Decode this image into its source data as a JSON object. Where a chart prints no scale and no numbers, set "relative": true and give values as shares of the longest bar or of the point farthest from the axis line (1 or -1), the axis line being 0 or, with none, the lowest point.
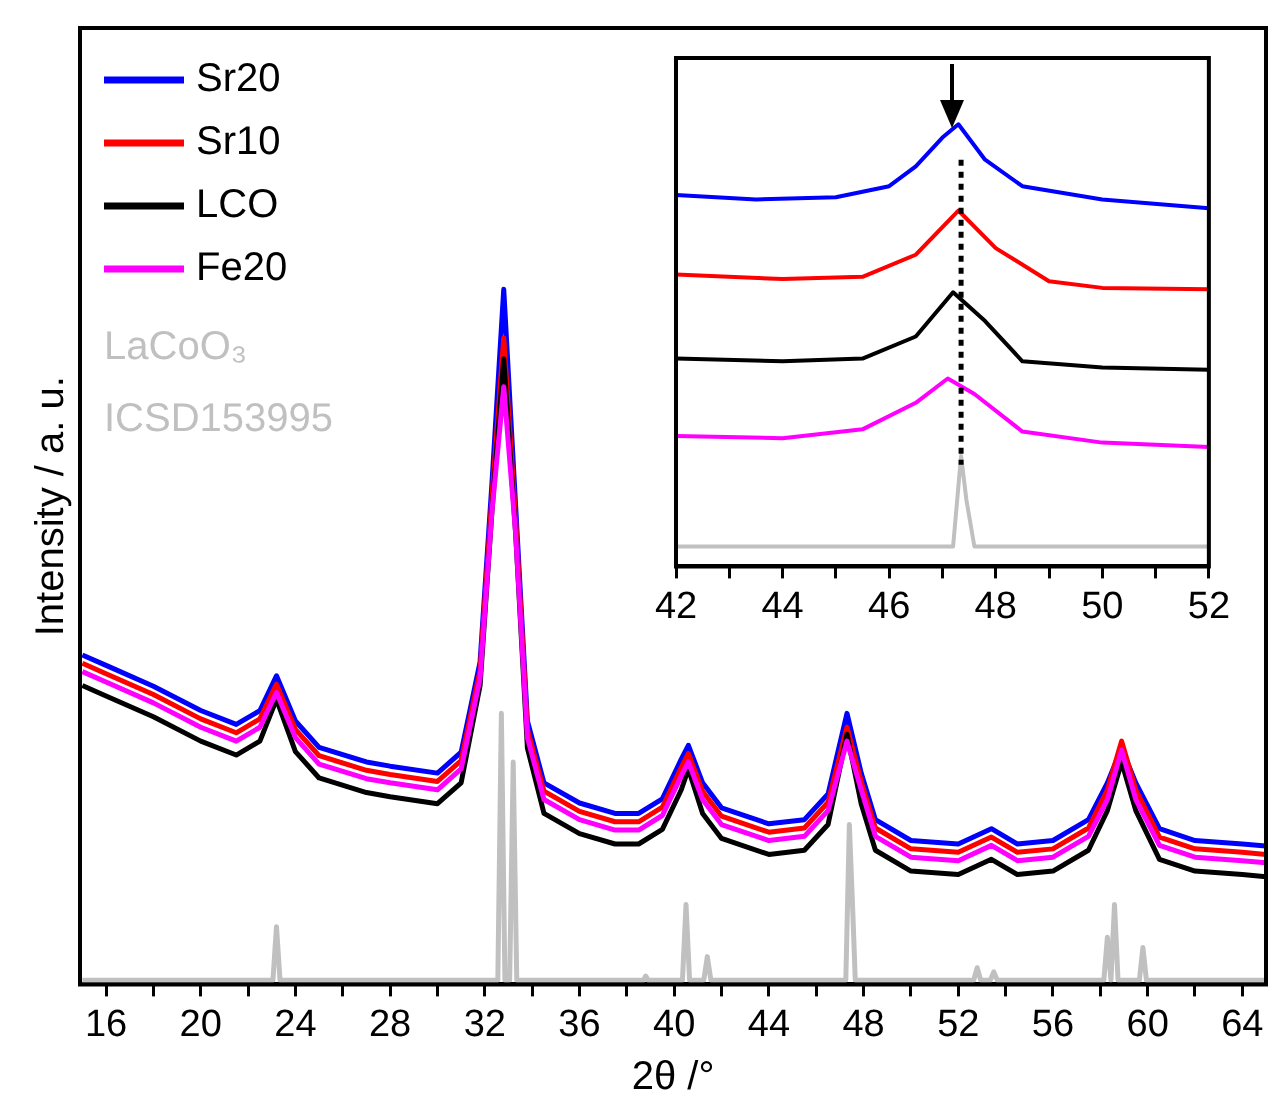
{
  "chart_data": [
    {
      "type": "line",
      "xlabel": "2θ /°",
      "ylabel": "Intensity / a. u.",
      "relative": true,
      "legend": "top left",
      "tick_labels": "x",
      "xlim": [
        14.9,
        65
      ],
      "xticks": [
        16,
        {
          "value": 18,
          "label": null
        },
        20,
        {
          "value": 22,
          "label": null
        },
        24,
        {
          "value": 26,
          "label": null
        },
        28,
        {
          "value": 30,
          "label": null
        },
        32,
        {
          "value": 34,
          "label": null
        },
        36,
        {
          "value": 38,
          "label": null
        },
        40,
        {
          "value": 42,
          "label": null
        },
        44,
        {
          "value": 46,
          "label": null
        },
        48,
        {
          "value": 50,
          "label": null
        },
        52,
        {
          "value": 54,
          "label": null
        },
        56,
        {
          "value": 58,
          "label": null
        },
        60,
        {
          "value": 62,
          "label": null
        },
        64
      ],
      "series": [
        {
          "name": "Sr20",
          "color": "#0000ff",
          "x": [
            15,
            16,
            18,
            20,
            21.5,
            22.5,
            23.2,
            24,
            25,
            27,
            28,
            30,
            31,
            31.8,
            32.3,
            32.8,
            33.3,
            33.8,
            34.5,
            36,
            37.5,
            38.5,
            39.5,
            40.3,
            40.6,
            41.2,
            42,
            44,
            45.5,
            46.5,
            47.3,
            47.9,
            48.5,
            50,
            52,
            53.4,
            54.5,
            56,
            57.5,
            58.3,
            58.9,
            59.5,
            60.5,
            62,
            64,
            65
          ],
          "values": [
            0.474,
            0.459,
            0.429,
            0.394,
            0.374,
            0.394,
            0.444,
            0.379,
            0.341,
            0.32,
            0.314,
            0.304,
            0.334,
            0.464,
            0.72,
            1.0,
            0.69,
            0.379,
            0.29,
            0.261,
            0.246,
            0.246,
            0.267,
            0.324,
            0.344,
            0.29,
            0.254,
            0.231,
            0.237,
            0.274,
            0.39,
            0.304,
            0.237,
            0.207,
            0.202,
            0.224,
            0.202,
            0.207,
            0.237,
            0.29,
            0.34,
            0.29,
            0.224,
            0.207,
            0.202,
            0.199
          ]
        },
        {
          "name": "Sr10",
          "color": "#ff0000",
          "x": [
            15,
            16,
            18,
            20,
            21.5,
            22.5,
            23.2,
            24,
            25,
            27,
            28,
            30,
            31,
            31.8,
            32.3,
            32.8,
            33.3,
            33.8,
            34.5,
            36,
            37.5,
            38.5,
            39.5,
            40.3,
            40.6,
            41.2,
            42,
            44,
            45.5,
            46.5,
            47.3,
            47.9,
            48.5,
            50,
            52,
            53.4,
            54.5,
            56,
            57.5,
            58.3,
            58.9,
            59.5,
            60.5,
            62,
            64,
            65
          ],
          "values": [
            0.462,
            0.447,
            0.417,
            0.382,
            0.362,
            0.382,
            0.432,
            0.367,
            0.329,
            0.308,
            0.302,
            0.292,
            0.322,
            0.452,
            0.7,
            0.93,
            0.67,
            0.367,
            0.278,
            0.249,
            0.234,
            0.234,
            0.255,
            0.312,
            0.332,
            0.278,
            0.242,
            0.219,
            0.225,
            0.262,
            0.37,
            0.292,
            0.225,
            0.195,
            0.19,
            0.212,
            0.19,
            0.195,
            0.225,
            0.28,
            0.35,
            0.28,
            0.212,
            0.195,
            0.19,
            0.187
          ]
        },
        {
          "name": "LCO",
          "color": "#000000",
          "x": [
            15,
            16,
            18,
            20,
            21.5,
            22.5,
            23.2,
            24,
            25,
            27,
            28,
            30,
            31,
            31.8,
            32.3,
            32.8,
            33.3,
            33.8,
            34.5,
            36,
            37.5,
            38.5,
            39.5,
            40.3,
            40.6,
            41.2,
            42,
            44,
            45.5,
            46.5,
            47.3,
            47.9,
            48.5,
            50,
            52,
            53.4,
            54.5,
            56,
            57.5,
            58.3,
            58.9,
            59.5,
            60.5,
            62,
            64,
            65
          ],
          "values": [
            0.43,
            0.415,
            0.385,
            0.35,
            0.33,
            0.35,
            0.41,
            0.335,
            0.297,
            0.276,
            0.27,
            0.26,
            0.29,
            0.43,
            0.68,
            0.9,
            0.65,
            0.34,
            0.246,
            0.217,
            0.202,
            0.202,
            0.223,
            0.28,
            0.31,
            0.246,
            0.21,
            0.187,
            0.193,
            0.23,
            0.36,
            0.26,
            0.193,
            0.163,
            0.158,
            0.18,
            0.158,
            0.163,
            0.193,
            0.25,
            0.32,
            0.25,
            0.18,
            0.163,
            0.158,
            0.155
          ]
        },
        {
          "name": "Fe20",
          "color": "#ff00ff",
          "x": [
            15,
            16,
            18,
            20,
            21.5,
            22.5,
            23.2,
            24,
            25,
            27,
            28,
            30,
            31,
            31.8,
            32.3,
            32.8,
            33.3,
            33.8,
            34.5,
            36,
            37.5,
            38.5,
            39.5,
            40.3,
            40.6,
            41.2,
            42,
            44,
            45.5,
            46.5,
            47.3,
            47.9,
            48.5,
            50,
            52,
            53.4,
            54.5,
            56,
            57.5,
            58.3,
            58.9,
            59.5,
            60.5,
            62,
            64,
            65
          ],
          "values": [
            0.45,
            0.435,
            0.405,
            0.37,
            0.35,
            0.37,
            0.42,
            0.355,
            0.317,
            0.296,
            0.29,
            0.28,
            0.31,
            0.44,
            0.68,
            0.86,
            0.65,
            0.355,
            0.266,
            0.237,
            0.222,
            0.222,
            0.243,
            0.3,
            0.32,
            0.266,
            0.23,
            0.207,
            0.213,
            0.25,
            0.35,
            0.28,
            0.213,
            0.183,
            0.178,
            0.2,
            0.178,
            0.183,
            0.213,
            0.266,
            0.337,
            0.266,
            0.2,
            0.183,
            0.178,
            0.175
          ]
        },
        {
          "name": "LaCoO₃ ICSD153995",
          "color": "#c0c0c0",
          "x": [
            15,
            23.05,
            23.2,
            23.35,
            32.55,
            32.7,
            32.85,
            33.05,
            33.2,
            33.35,
            38.7,
            38.8,
            38.9,
            40.35,
            40.5,
            40.65,
            41.25,
            41.4,
            41.55,
            47.25,
            47.4,
            47.55,
            47.65,
            52.65,
            52.8,
            52.95,
            53.35,
            53.5,
            53.65,
            58.15,
            58.3,
            58.45,
            58.6,
            58.75,
            59.65,
            59.8,
            59.95,
            65
          ],
          "values": [
            0.006,
            0.006,
            0.083,
            0.006,
            0.006,
            0.39,
            0.006,
            0.006,
            0.32,
            0.006,
            0.006,
            0.012,
            0.006,
            0.006,
            0.115,
            0.006,
            0.006,
            0.04,
            0.006,
            0.006,
            0.23,
            0.1,
            0.006,
            0.006,
            0.024,
            0.006,
            0.006,
            0.018,
            0.006,
            0.006,
            0.068,
            0.006,
            0.115,
            0.006,
            0.006,
            0.053,
            0.006,
            0.006
          ]
        }
      ]
    },
    {
      "type": "line",
      "relative": true,
      "tick_labels": "x",
      "xlim": [
        42,
        52
      ],
      "xticks": [
        42,
        {
          "value": 43,
          "label": null
        },
        44,
        {
          "value": 45,
          "label": null
        },
        46,
        {
          "value": 47,
          "label": null
        },
        48,
        {
          "value": 49,
          "label": null
        },
        50,
        {
          "value": 51,
          "label": null
        },
        52
      ],
      "ref_lines": [
        {
          "axis": "x",
          "value": 47.35,
          "color": "#000000",
          "line_style": "dotted"
        }
      ],
      "series": [
        {
          "color": "#0000ff",
          "x": [
            42,
            43.5,
            45,
            46,
            46.5,
            47,
            47.3,
            47.8,
            48.5,
            50,
            52
          ],
          "values": [
            0.84,
            0.83,
            0.835,
            0.86,
            0.905,
            0.97,
            1.0,
            0.92,
            0.86,
            0.83,
            0.81
          ]
        },
        {
          "color": "#ff0000",
          "x": [
            42,
            44,
            45.5,
            46.5,
            47.3,
            48,
            49,
            50,
            52
          ],
          "values": [
            0.66,
            0.65,
            0.655,
            0.705,
            0.805,
            0.72,
            0.645,
            0.63,
            0.627
          ]
        },
        {
          "color": "#000000",
          "x": [
            42,
            44,
            45.5,
            46.5,
            47.2,
            47.8,
            48.5,
            50,
            52
          ],
          "values": [
            0.47,
            0.464,
            0.47,
            0.52,
            0.62,
            0.555,
            0.464,
            0.45,
            0.445
          ]
        },
        {
          "color": "#ff00ff",
          "x": [
            42,
            44,
            45.5,
            46.5,
            47.1,
            47.6,
            48.5,
            50,
            52
          ],
          "values": [
            0.295,
            0.29,
            0.31,
            0.37,
            0.425,
            0.39,
            0.305,
            0.28,
            0.27
          ]
        },
        {
          "color": "#c0c0c0",
          "x": [
            42,
            47.2,
            47.35,
            47.45,
            47.6,
            52
          ],
          "values": [
            0.045,
            0.045,
            0.25,
            0.15,
            0.045,
            0.045
          ]
        }
      ]
    }
  ]
}
